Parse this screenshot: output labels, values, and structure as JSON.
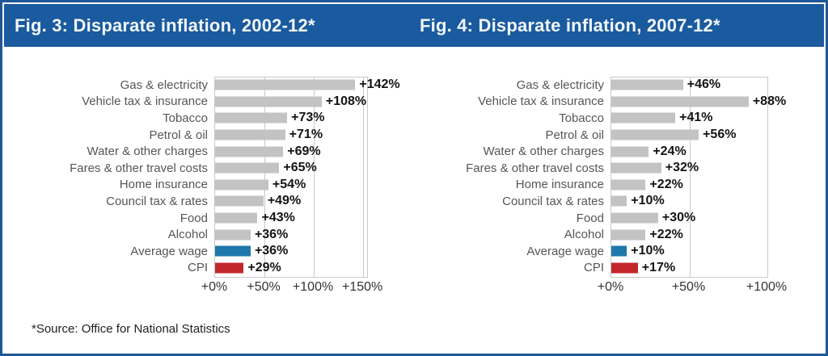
{
  "header": {
    "titles": [
      "Fig. 3: Disparate inflation, 2002-12*",
      "Fig. 4: Disparate inflation, 2007-12*"
    ]
  },
  "footer": {
    "source_note": "*Source: Office for National Statistics"
  },
  "colors": {
    "frame_blue": "#1e5796",
    "header_blue": "#1a5a9e",
    "bar_gray": "#c3c3c3",
    "bar_average_wage_blue": "#1f78ab",
    "bar_cpi_red": "#c2272c",
    "grid_gray": "#c9c9c9"
  },
  "chart_data": [
    {
      "type": "bar",
      "orientation": "horizontal",
      "title": "Fig. 3: Disparate inflation, 2002-12*",
      "categories": [
        "Gas & electricity",
        "Vehicle tax & insurance",
        "Tobacco",
        "Petrol & oil",
        "Water & other charges",
        "Fares & other travel costs",
        "Home insurance",
        "Council tax & rates",
        "Food",
        "Alcohol",
        "Average wage",
        "CPI"
      ],
      "values": [
        142,
        108,
        73,
        71,
        69,
        65,
        54,
        49,
        43,
        36,
        36,
        29
      ],
      "data_labels": [
        "+142%",
        "+108%",
        "+73%",
        "+71%",
        "+69%",
        "+65%",
        "+54%",
        "+49%",
        "+43%",
        "+36%",
        "+36%",
        "+29%"
      ],
      "bar_colors": [
        "#c3c3c3",
        "#c3c3c3",
        "#c3c3c3",
        "#c3c3c3",
        "#c3c3c3",
        "#c3c3c3",
        "#c3c3c3",
        "#c3c3c3",
        "#c3c3c3",
        "#c3c3c3",
        "#1f78ab",
        "#c2272c"
      ],
      "x_tick_labels": [
        "+0%",
        "+50%",
        "+100%",
        "+150%"
      ],
      "x_tick_values": [
        0,
        50,
        100,
        150
      ],
      "xlim": [
        0,
        154
      ],
      "grid": "vertical",
      "legend": "none",
      "units": "percent change"
    },
    {
      "type": "bar",
      "orientation": "horizontal",
      "title": "Fig. 4: Disparate inflation, 2007-12*",
      "categories": [
        "Gas & electricity",
        "Vehicle tax & insurance",
        "Tobacco",
        "Petrol & oil",
        "Water & other charges",
        "Fares & other travel costs",
        "Home insurance",
        "Council tax & rates",
        "Food",
        "Alcohol",
        "Average wage",
        "CPI"
      ],
      "values": [
        46,
        88,
        41,
        56,
        24,
        32,
        22,
        10,
        30,
        22,
        10,
        17
      ],
      "data_labels": [
        "+46%",
        "+88%",
        "+41%",
        "+56%",
        "+24%",
        "+32%",
        "+22%",
        "+10%",
        "+30%",
        "+22%",
        "+10%",
        "+17%"
      ],
      "bar_colors": [
        "#c3c3c3",
        "#c3c3c3",
        "#c3c3c3",
        "#c3c3c3",
        "#c3c3c3",
        "#c3c3c3",
        "#c3c3c3",
        "#c3c3c3",
        "#c3c3c3",
        "#c3c3c3",
        "#1f78ab",
        "#c2272c"
      ],
      "x_tick_labels": [
        "+0%",
        "+50%",
        "+100%"
      ],
      "x_tick_values": [
        0,
        50,
        100
      ],
      "xlim": [
        0,
        100
      ],
      "grid": "vertical",
      "legend": "none",
      "units": "percent change"
    }
  ]
}
